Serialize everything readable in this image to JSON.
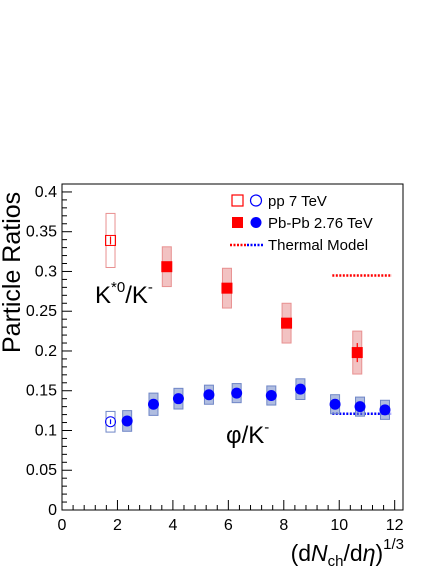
{
  "chart_data": {
    "type": "scatter",
    "title": "",
    "xlabel": {
      "pre": "(d",
      "N": "N",
      "sub": "ch",
      "mid": "/d",
      "eta": "η",
      "post": ")",
      "sup": "1/3"
    },
    "ylabel": "Particle Ratios",
    "xlim": [
      0,
      12.3
    ],
    "ylim": [
      0,
      0.41
    ],
    "x_ticks": [
      "0",
      "2",
      "4",
      "6",
      "8",
      "10",
      "12"
    ],
    "x_tick_values": [
      0,
      2,
      4,
      6,
      8,
      10,
      12
    ],
    "y_ticks": [
      "0",
      "0.05",
      "0.1",
      "0.15",
      "0.2",
      "0.25",
      "0.3",
      "0.35",
      "0.4"
    ],
    "y_tick_values": [
      0,
      0.05,
      0.1,
      0.15,
      0.2,
      0.25,
      0.3,
      0.35,
      0.4
    ],
    "grid": false,
    "legend_position": "top-right",
    "legend": {
      "pp": "pp 7 TeV",
      "pbpb": "Pb-Pb 2.76 TeV",
      "thermal": "Thermal Model"
    },
    "annotations": {
      "kstar": {
        "base": "K",
        "sup": "*0",
        "slash": "/K",
        "sup2": "-"
      },
      "phi": {
        "base": "φ/K",
        "sup": "-"
      }
    },
    "colors": {
      "kstar": "#ff0000",
      "phi": "#0000ff",
      "kstar_box": "#e89090",
      "phi_box": "#6f86c7"
    },
    "series": [
      {
        "group": "kstar-pp",
        "points": [
          {
            "x": 1.75,
            "y": 0.339,
            "stat": 0.005,
            "sys": 0.034
          }
        ]
      },
      {
        "group": "kstar-pbpb",
        "points": [
          {
            "x": 3.78,
            "y": 0.306,
            "stat": 0.005,
            "sys": 0.025
          },
          {
            "x": 5.95,
            "y": 0.279,
            "stat": 0.005,
            "sys": 0.025
          },
          {
            "x": 8.1,
            "y": 0.235,
            "stat": 0.006,
            "sys": 0.025
          },
          {
            "x": 10.65,
            "y": 0.198,
            "stat": 0.012,
            "sys": 0.027
          }
        ]
      },
      {
        "group": "phi-pp",
        "points": [
          {
            "x": 1.75,
            "y": 0.111,
            "stat": 0.003,
            "sys": 0.013
          }
        ]
      },
      {
        "group": "phi-pbpb",
        "points": [
          {
            "x": 2.35,
            "y": 0.112,
            "stat": 0.002,
            "sys": 0.013
          },
          {
            "x": 3.3,
            "y": 0.133,
            "stat": 0.002,
            "sys": 0.014
          },
          {
            "x": 4.2,
            "y": 0.14,
            "stat": 0.002,
            "sys": 0.013
          },
          {
            "x": 5.3,
            "y": 0.145,
            "stat": 0.002,
            "sys": 0.012
          },
          {
            "x": 6.3,
            "y": 0.147,
            "stat": 0.002,
            "sys": 0.012
          },
          {
            "x": 7.55,
            "y": 0.144,
            "stat": 0.002,
            "sys": 0.012
          },
          {
            "x": 8.6,
            "y": 0.152,
            "stat": 0.002,
            "sys": 0.013
          },
          {
            "x": 9.85,
            "y": 0.133,
            "stat": 0.002,
            "sys": 0.012
          },
          {
            "x": 10.75,
            "y": 0.13,
            "stat": 0.002,
            "sys": 0.012
          },
          {
            "x": 11.65,
            "y": 0.126,
            "stat": 0.002,
            "sys": 0.012
          }
        ]
      }
    ],
    "thermal_model": [
      {
        "group": "kstar",
        "x_start": 9.75,
        "x_end": 11.9,
        "y": 0.295
      },
      {
        "group": "phi",
        "x_start": 9.75,
        "x_end": 11.9,
        "y": 0.121
      }
    ]
  }
}
